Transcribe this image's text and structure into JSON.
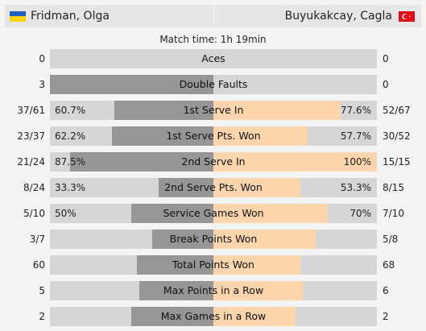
{
  "header": {
    "left_player": {
      "name": "Fridman, Olga",
      "flag_icon": "ukraine-flag-icon",
      "flag_colors": [
        "#1f5fbf",
        "#ffd400"
      ]
    },
    "right_player": {
      "name": "Buyukakcay, Cagla",
      "flag_icon": "turkey-flag-icon",
      "flag_color": "#e30a17"
    }
  },
  "match_time": "Match time: 1h 19min",
  "colors": {
    "left_bar": "#969696",
    "right_bar": "#fdd5ad",
    "track": "#d6d6d6"
  },
  "stats": [
    {
      "label": "Aces",
      "left": "0",
      "right": "0",
      "left_pct": "",
      "right_pct": "",
      "left_share": 0.0,
      "right_share": 0.0
    },
    {
      "label": "Double Faults",
      "left": "3",
      "right": "0",
      "left_pct": "",
      "right_pct": "",
      "left_share": 1.0,
      "right_share": 0.0
    },
    {
      "label": "1st Serve In",
      "left": "37/61",
      "right": "52/67",
      "left_pct": "60.7%",
      "right_pct": "77.6%",
      "left_share": 0.607,
      "right_share": 0.776
    },
    {
      "label": "1st Serve Pts. Won",
      "left": "23/37",
      "right": "30/52",
      "left_pct": "62.2%",
      "right_pct": "57.7%",
      "left_share": 0.622,
      "right_share": 0.577
    },
    {
      "label": "2nd Serve In",
      "left": "21/24",
      "right": "15/15",
      "left_pct": "87.5%",
      "right_pct": "100%",
      "left_share": 0.875,
      "right_share": 1.0
    },
    {
      "label": "2nd Serve Pts. Won",
      "left": "8/24",
      "right": "8/15",
      "left_pct": "33.3%",
      "right_pct": "53.3%",
      "left_share": 0.333,
      "right_share": 0.533
    },
    {
      "label": "Service Games Won",
      "left": "5/10",
      "right": "7/10",
      "left_pct": "50%",
      "right_pct": "70%",
      "left_share": 0.5,
      "right_share": 0.7
    },
    {
      "label": "Break Points Won",
      "left": "3/7",
      "right": "5/8",
      "left_pct": "",
      "right_pct": "",
      "left_share": 0.375,
      "right_share": 0.625
    },
    {
      "label": "Total Points Won",
      "left": "60",
      "right": "68",
      "left_pct": "",
      "right_pct": "",
      "left_share": 0.469,
      "right_share": 0.531
    },
    {
      "label": "Max Points in a Row",
      "left": "5",
      "right": "6",
      "left_pct": "",
      "right_pct": "",
      "left_share": 0.455,
      "right_share": 0.545
    },
    {
      "label": "Max Games in a Row",
      "left": "2",
      "right": "2",
      "left_pct": "",
      "right_pct": "",
      "left_share": 0.5,
      "right_share": 0.5
    }
  ]
}
